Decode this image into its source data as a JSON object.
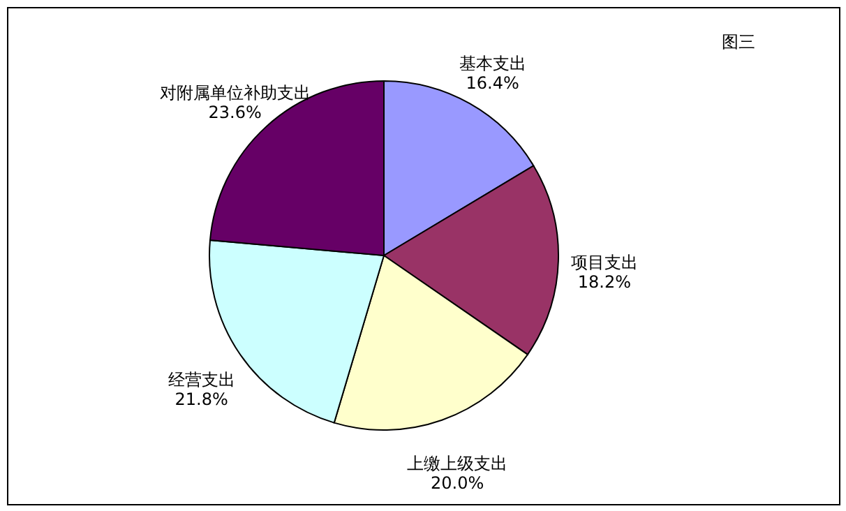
{
  "chart_data": {
    "type": "pie",
    "title": "图三",
    "categories": [
      "基本支出",
      "项目支出",
      "上缴上级支出",
      "经营支出",
      "对附属单位补助支出"
    ],
    "values": [
      16.4,
      18.2,
      20.0,
      21.8,
      23.6
    ],
    "value_labels": [
      "16.4%",
      "18.2%",
      "20.0%",
      "21.8%",
      "23.6%"
    ],
    "colors": [
      "#9999ff",
      "#993366",
      "#ffffcc",
      "#ccffff",
      "#660066"
    ],
    "legend": false
  }
}
